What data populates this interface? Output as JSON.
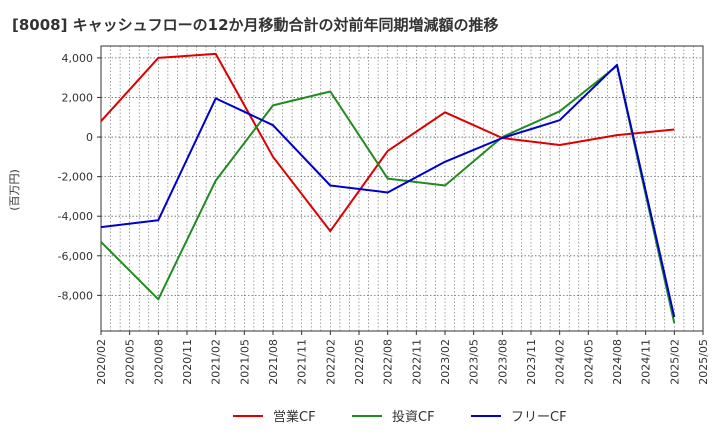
{
  "chart_data": {
    "type": "line",
    "title": "[8008]  キャッシュフローの12か月移動合計の対前年同期増減額の推移",
    "ylabel": "(百万円)",
    "xlabel": "",
    "ylim": [
      -9800,
      4600
    ],
    "yticks": [
      -8000,
      -6000,
      -4000,
      -2000,
      0,
      2000,
      4000
    ],
    "ytick_labels": [
      "-8,000",
      "-6,000",
      "-4,000",
      "-2,000",
      "0",
      "2,000",
      "4,000"
    ],
    "xlim": [
      "2020/02",
      "2025/05"
    ],
    "xtick_labels": [
      "2020/02",
      "2020/05",
      "2020/08",
      "2020/11",
      "2021/02",
      "2021/05",
      "2021/08",
      "2021/11",
      "2022/02",
      "2022/05",
      "2022/08",
      "2022/11",
      "2023/02",
      "2023/05",
      "2023/08",
      "2023/11",
      "2024/02",
      "2024/05",
      "2024/08",
      "2024/11",
      "2025/02",
      "2025/05"
    ],
    "x": [
      "2020/02",
      "2020/08",
      "2021/02",
      "2021/08",
      "2022/02",
      "2022/08",
      "2023/02",
      "2023/08",
      "2024/02",
      "2024/08",
      "2025/02"
    ],
    "series": [
      {
        "name": "営業CF",
        "color": "#dd0000",
        "values": [
          800,
          4000,
          4200,
          -1000,
          -4750,
          -700,
          1250,
          -50,
          -400,
          100,
          380
        ]
      },
      {
        "name": "投資CF",
        "color": "#228b22",
        "values": [
          -5300,
          -8200,
          -2200,
          1600,
          2300,
          -2100,
          -2450,
          0,
          1300,
          3600,
          -9400
        ]
      },
      {
        "name": "フリーCF",
        "color": "#0000cc",
        "values": [
          -4550,
          -4200,
          1950,
          600,
          -2450,
          -2800,
          -1250,
          -50,
          850,
          3650,
          -9100
        ]
      }
    ],
    "grid": true,
    "legend_position": "bottom"
  }
}
